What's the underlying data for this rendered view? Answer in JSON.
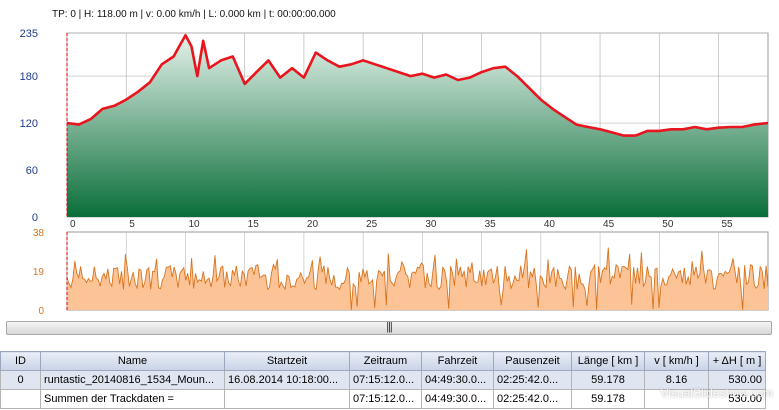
{
  "status_text": "TP: 0 | H: 118.00 m | v: 0.00 km/h | L: 0.000 km | t: 00:00:00.000",
  "colors": {
    "elevation_line": "#e8141e",
    "elevation_fill_top": "#e4f2ea",
    "elevation_fill_bottom": "#0a6e3a",
    "speed_fill": "#fbc396",
    "speed_line": "#d9741e",
    "axis_label": "#1f3d8c",
    "grid": "#b8b8b8",
    "marker": "#e00000"
  },
  "chart_data": [
    {
      "type": "area",
      "ylim": [
        0,
        235
      ],
      "yticks": [
        "235",
        "180",
        "120",
        "60",
        "0"
      ],
      "xlim": [
        0,
        59.178
      ],
      "xticks": [
        "0",
        "5",
        "10",
        "15",
        "20",
        "25",
        "30",
        "35",
        "40",
        "45",
        "50",
        "55"
      ],
      "series": [
        {
          "x": [
            0,
            1,
            2,
            3,
            4,
            5,
            6,
            7,
            8,
            9,
            10,
            10.5,
            11,
            11.5,
            12,
            13,
            14,
            15,
            16,
            17,
            18,
            19,
            20,
            21,
            22,
            23,
            24,
            25,
            26,
            27,
            28,
            29,
            30,
            31,
            32,
            33,
            34,
            35,
            36,
            37,
            38,
            39,
            40,
            41,
            42,
            43,
            44,
            45,
            46,
            47,
            48,
            49,
            50,
            51,
            52,
            53,
            54,
            55,
            56,
            57,
            58,
            59.178
          ],
          "y": [
            120,
            118,
            125,
            138,
            142,
            150,
            160,
            172,
            195,
            205,
            232,
            218,
            180,
            225,
            190,
            200,
            205,
            170,
            185,
            200,
            178,
            190,
            178,
            210,
            200,
            192,
            195,
            200,
            195,
            190,
            185,
            180,
            183,
            178,
            182,
            175,
            178,
            185,
            190,
            192,
            180,
            165,
            150,
            138,
            128,
            118,
            115,
            112,
            108,
            104,
            104,
            110,
            110,
            112,
            112,
            115,
            112,
            114,
            115,
            115,
            118,
            120
          ]
        }
      ]
    },
    {
      "type": "area",
      "ylim": [
        0,
        38
      ],
      "yticks": [
        "38",
        "19",
        "0"
      ]
    }
  ],
  "table": {
    "headers": [
      "ID",
      "Name",
      "Startzeit",
      "Zeitraum",
      "Fahrzeit",
      "Pausenzeit",
      "Länge  [ km ]",
      "v  [ km/h ]",
      "+ ΔH  [ m ]"
    ],
    "rows": [
      [
        "0",
        "runtastic_20140816_1534_Moun...",
        "16.08.2014 10:18:00...",
        "07:15:12.0...",
        "04:49:30.0...",
        "02:25:42.0...",
        "59.178",
        "8.16",
        "530.00"
      ],
      [
        "",
        "Summen der Trackdaten =",
        "",
        "07:15:12.0...",
        "04:49:30.0...",
        "02:25:42.0...",
        "59.178",
        "",
        "530.00"
      ]
    ]
  },
  "splitter_grip": "|||",
  "watermark": "VisualSlideshow.com"
}
